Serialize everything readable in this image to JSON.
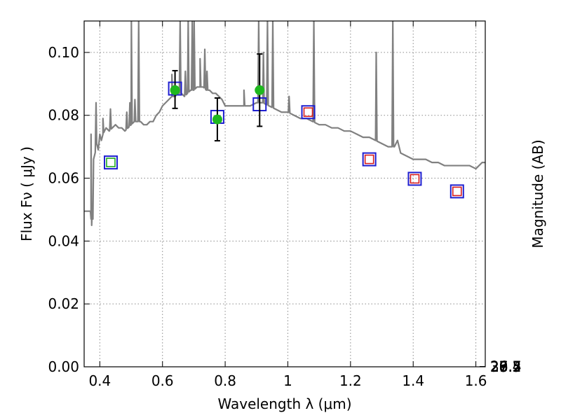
{
  "chart_data": {
    "type": "line",
    "title": "",
    "xlabel": "Wavelength  λ (μm)",
    "ylabel_left": "Flux  Fν  ( μJy )",
    "ylabel_right": "Magnitude (AB)",
    "xlim": [
      0.35,
      1.63
    ],
    "ylim": [
      0.0,
      0.11
    ],
    "grid": true,
    "x_ticks": [
      0.4,
      0.6,
      0.8,
      1.0,
      1.2,
      1.4,
      1.6
    ],
    "x_tick_labels": [
      "0.4",
      "0.6",
      "0.8",
      "1",
      "1.2",
      "1.4",
      "1.6"
    ],
    "y_ticks": [
      0.0,
      0.02,
      0.04,
      0.06,
      0.08,
      0.1
    ],
    "y_tick_labels": [
      "0.00",
      "0.02",
      "0.04",
      "0.06",
      "0.08",
      "0.10"
    ],
    "right_ticks": [
      {
        "mag": 26.4,
        "label": "26.4"
      },
      {
        "mag": 26.5,
        "label": "26.5"
      },
      {
        "mag": 26.7,
        "label": "26.7"
      },
      {
        "mag": 27.0,
        "label": "27"
      },
      {
        "mag": 27.2,
        "label": "27.2"
      },
      {
        "mag": 27.5,
        "label": "27.5"
      },
      {
        "mag": 28.0,
        "label": "28"
      },
      {
        "mag": 28.5,
        "label": "28.5"
      },
      {
        "mag": 29.0,
        "label": "29"
      },
      {
        "mag": 30.0,
        "label": "30"
      }
    ],
    "series": [
      {
        "kind": "model_sed",
        "color": "#808080",
        "x": [
          0.35,
          0.36,
          0.37,
          0.372,
          0.374,
          0.376,
          0.378,
          0.38,
          0.385,
          0.39,
          0.395,
          0.4,
          0.405,
          0.41,
          0.42,
          0.43,
          0.44,
          0.45,
          0.46,
          0.47,
          0.48,
          0.49,
          0.5,
          0.51,
          0.52,
          0.53,
          0.54,
          0.55,
          0.56,
          0.57,
          0.58,
          0.59,
          0.6,
          0.61,
          0.62,
          0.63,
          0.64,
          0.65,
          0.66,
          0.67,
          0.68,
          0.69,
          0.7,
          0.71,
          0.72,
          0.73,
          0.74,
          0.75,
          0.76,
          0.77,
          0.78,
          0.79,
          0.8,
          0.82,
          0.84,
          0.86,
          0.88,
          0.9,
          0.92,
          0.94,
          0.96,
          0.98,
          1.0,
          1.02,
          1.04,
          1.06,
          1.08,
          1.1,
          1.12,
          1.14,
          1.16,
          1.18,
          1.2,
          1.22,
          1.24,
          1.26,
          1.28,
          1.3,
          1.32,
          1.34,
          1.35,
          1.36,
          1.38,
          1.4,
          1.42,
          1.44,
          1.46,
          1.48,
          1.5,
          1.52,
          1.54,
          1.56,
          1.58,
          1.6,
          1.62,
          1.63
        ],
        "y": [
          0.0495,
          0.0495,
          0.0495,
          0.047,
          0.045,
          0.051,
          0.047,
          0.066,
          0.068,
          0.071,
          0.069,
          0.074,
          0.072,
          0.074,
          0.076,
          0.075,
          0.076,
          0.077,
          0.076,
          0.076,
          0.075,
          0.076,
          0.077,
          0.078,
          0.078,
          0.078,
          0.077,
          0.077,
          0.078,
          0.078,
          0.08,
          0.081,
          0.083,
          0.084,
          0.085,
          0.086,
          0.086,
          0.087,
          0.087,
          0.086,
          0.087,
          0.088,
          0.088,
          0.089,
          0.089,
          0.089,
          0.088,
          0.088,
          0.087,
          0.087,
          0.086,
          0.085,
          0.083,
          0.083,
          0.083,
          0.083,
          0.083,
          0.084,
          0.084,
          0.083,
          0.082,
          0.081,
          0.081,
          0.08,
          0.079,
          0.079,
          0.078,
          0.077,
          0.077,
          0.076,
          0.076,
          0.075,
          0.075,
          0.074,
          0.073,
          0.073,
          0.072,
          0.071,
          0.07,
          0.07,
          0.072,
          0.068,
          0.067,
          0.066,
          0.066,
          0.066,
          0.065,
          0.065,
          0.064,
          0.064,
          0.064,
          0.064,
          0.064,
          0.063,
          0.065,
          0.065
        ],
        "emission_lines": [
          {
            "x": 0.372,
            "peak": 0.074
          },
          {
            "x": 0.388,
            "peak": 0.084
          },
          {
            "x": 0.41,
            "peak": 0.079
          },
          {
            "x": 0.434,
            "peak": 0.082
          },
          {
            "x": 0.486,
            "peak": 0.081
          },
          {
            "x": 0.496,
            "peak": 0.084
          },
          {
            "x": 0.5007,
            "peak": 0.11
          },
          {
            "x": 0.512,
            "peak": 0.085
          },
          {
            "x": 0.524,
            "peak": 0.11
          },
          {
            "x": 0.63,
            "peak": 0.093
          },
          {
            "x": 0.6563,
            "peak": 0.11
          },
          {
            "x": 0.673,
            "peak": 0.094
          },
          {
            "x": 0.682,
            "peak": 0.11
          },
          {
            "x": 0.695,
            "peak": 0.11
          },
          {
            "x": 0.701,
            "peak": 0.11
          },
          {
            "x": 0.72,
            "peak": 0.098
          },
          {
            "x": 0.735,
            "peak": 0.101
          },
          {
            "x": 0.742,
            "peak": 0.094
          },
          {
            "x": 0.86,
            "peak": 0.088
          },
          {
            "x": 0.907,
            "peak": 0.11
          },
          {
            "x": 0.922,
            "peak": 0.1
          },
          {
            "x": 0.935,
            "peak": 0.11
          },
          {
            "x": 0.952,
            "peak": 0.11
          },
          {
            "x": 1.004,
            "peak": 0.086
          },
          {
            "x": 1.083,
            "peak": 0.11
          },
          {
            "x": 1.282,
            "peak": 0.1
          },
          {
            "x": 1.335,
            "peak": 0.11
          }
        ]
      },
      {
        "kind": "model_band_flux",
        "marker": "square",
        "stroke": "#1f1fd0",
        "x": [
          0.435,
          0.64,
          0.775,
          0.91,
          1.065,
          1.26,
          1.405,
          1.54
        ],
        "y": [
          0.065,
          0.0885,
          0.0795,
          0.0835,
          0.081,
          0.066,
          0.0598,
          0.0558
        ]
      },
      {
        "kind": "observed_flux",
        "marker": "circle",
        "color": "#1eb81e",
        "x": [
          0.64,
          0.775,
          0.91
        ],
        "y": [
          0.088,
          0.0787,
          0.088
        ],
        "yerr": [
          [
            0.0058,
            0.0062
          ],
          [
            0.0068,
            0.0068
          ],
          [
            0.0115,
            0.0115
          ]
        ]
      },
      {
        "kind": "upper_limit",
        "marker": "square",
        "stroke": "#d81e1e",
        "x": [
          1.065,
          1.26,
          1.405,
          1.54
        ],
        "y": [
          0.081,
          0.066,
          0.0598,
          0.0558
        ]
      },
      {
        "kind": "nondetection",
        "marker": "square",
        "stroke": "#1eaa1e",
        "x": [
          0.435
        ],
        "y": [
          0.065
        ]
      }
    ]
  }
}
